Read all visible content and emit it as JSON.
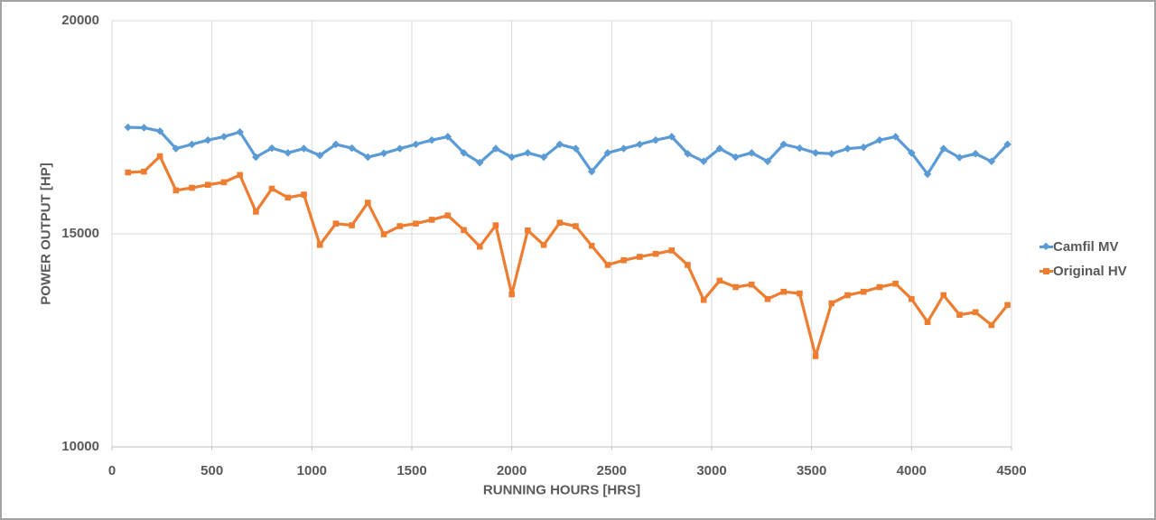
{
  "colors": {
    "background": "#ffffff",
    "window_border": "#a3a3a3",
    "gridline": "#d9d9d9",
    "axis_line": "#bfbfbf",
    "text": "#595959",
    "series_blue": "#5B9BD5",
    "series_orange": "#ED7D31"
  },
  "chart_data": {
    "type": "line",
    "title": "",
    "xlabel": "RUNNING HOURS [HRS]",
    "ylabel": "POWER OUTPUT [HP]",
    "xlim": [
      0,
      4500
    ],
    "ylim": [
      10000,
      20000
    ],
    "x_ticks": [
      0,
      500,
      1000,
      1500,
      2000,
      2500,
      3000,
      3500,
      4000,
      4500
    ],
    "y_ticks": [
      10000,
      15000,
      20000
    ],
    "grid": "horizontal and vertical gridlines on",
    "legend_position": "right",
    "x": [
      80,
      160,
      240,
      320,
      400,
      480,
      560,
      640,
      720,
      800,
      880,
      960,
      1040,
      1120,
      1200,
      1280,
      1360,
      1440,
      1520,
      1600,
      1680,
      1760,
      1840,
      1920,
      2000,
      2080,
      2160,
      2240,
      2320,
      2400,
      2480,
      2560,
      2640,
      2720,
      2800,
      2880,
      2960,
      3040,
      3120,
      3200,
      3280,
      3360,
      3440,
      3520,
      3600,
      3680,
      3760,
      3840,
      3920,
      4000,
      4080,
      4160,
      4240,
      4320,
      4400,
      4480
    ],
    "series": [
      {
        "name": "Camfil MV",
        "color": "#5B9BD5",
        "marker": "diamond",
        "values": [
          17500,
          17490,
          17410,
          17000,
          17100,
          17200,
          17280,
          17390,
          16800,
          17010,
          16900,
          17000,
          16840,
          17100,
          17010,
          16800,
          16890,
          17000,
          17100,
          17200,
          17280,
          16900,
          16670,
          17000,
          16800,
          16900,
          16800,
          17100,
          17000,
          16460,
          16900,
          17000,
          17100,
          17200,
          17280,
          16880,
          16700,
          17000,
          16800,
          16900,
          16700,
          17100,
          17010,
          16900,
          16880,
          17000,
          17030,
          17200,
          17280,
          16900,
          16400,
          17000,
          16790,
          16880,
          16700,
          17100
        ]
      },
      {
        "name": "Original HV",
        "color": "#ED7D31",
        "marker": "square",
        "values": [
          16440,
          16460,
          16820,
          16020,
          16080,
          16150,
          16210,
          16380,
          15520,
          16060,
          15850,
          15920,
          14740,
          15240,
          15200,
          15730,
          14990,
          15180,
          15240,
          15330,
          15430,
          15090,
          14700,
          15200,
          13580,
          15080,
          14740,
          15260,
          15180,
          14720,
          14270,
          14380,
          14460,
          14530,
          14610,
          14270,
          13450,
          13900,
          13750,
          13810,
          13470,
          13640,
          13600,
          12130,
          13370,
          13560,
          13640,
          13750,
          13830,
          13470,
          12930,
          13560,
          13100,
          13160,
          12860,
          13330
        ]
      }
    ]
  }
}
